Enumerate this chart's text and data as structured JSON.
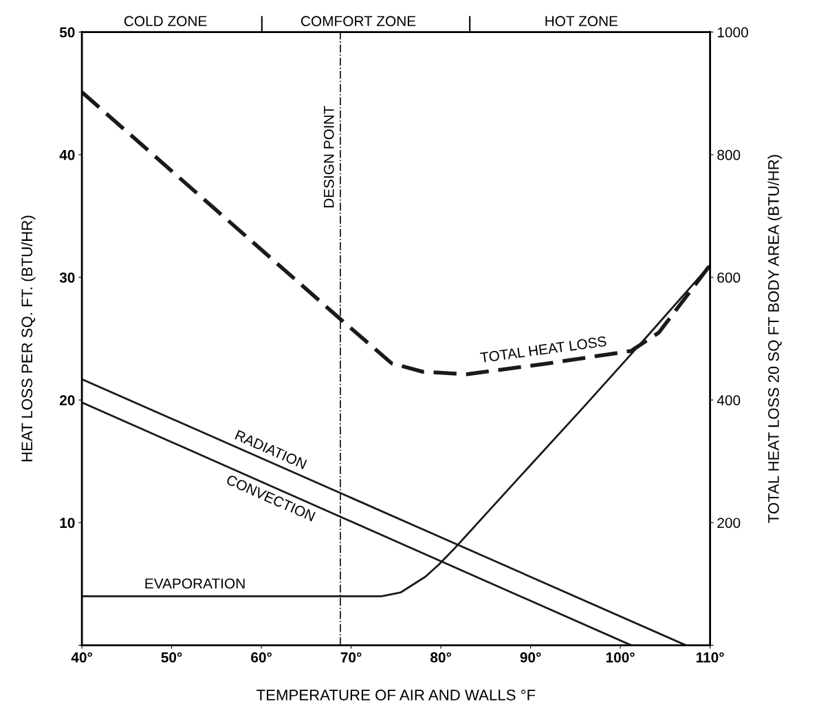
{
  "chart_data": {
    "type": "line",
    "xlabel": "TEMPERATURE OF AIR AND WALLS °F",
    "ylabel": "HEAT LOSS PER SQ. FT. (BTU/HR)",
    "y2label": "TOTAL HEAT LOSS 20 SQ FT BODY AREA (BTU/HR)",
    "xlim": [
      40,
      110
    ],
    "ylim": [
      0,
      50
    ],
    "y2lim": [
      0,
      1000
    ],
    "xticks": [
      {
        "value": 40,
        "label": "40°"
      },
      {
        "value": 50,
        "label": "50°"
      },
      {
        "value": 60,
        "label": "60°"
      },
      {
        "value": 70,
        "label": "70°"
      },
      {
        "value": 80,
        "label": "80°"
      },
      {
        "value": 90,
        "label": "90°"
      },
      {
        "value": 100,
        "label": "100°"
      },
      {
        "value": 110,
        "label": "110°"
      }
    ],
    "yticks": [
      {
        "value": 0,
        "label": null
      },
      10,
      20,
      30,
      40,
      50
    ],
    "y2ticks": [
      {
        "value": 0,
        "label": null
      },
      200,
      400,
      600,
      800,
      1000
    ],
    "grid": false,
    "legend": false,
    "marker": "none",
    "series": [
      {
        "name": "RADIATION",
        "color": "#1a1a1a",
        "line_style": "solid",
        "x": [
          40,
          107.3
        ],
        "values": [
          21.7,
          0
        ]
      },
      {
        "name": "CONVECTION",
        "color": "#1a1a1a",
        "line_style": "solid",
        "x": [
          40,
          101.2
        ],
        "values": [
          19.8,
          0
        ]
      },
      {
        "name": "EVAPORATION",
        "color": "#1a1a1a",
        "line_style": "solid",
        "x": [
          40,
          73.4,
          75.5,
          76.8,
          78.3,
          79.8,
          81.4,
          82.9,
          89,
          96,
          103,
          110
        ],
        "values": [
          4.0,
          4.0,
          4.3,
          4.9,
          5.6,
          6.6,
          7.8,
          9.0,
          13.9,
          19.5,
          25.2,
          31.0
        ]
      },
      {
        "name": "TOTAL HEAT LOSS",
        "color": "#1a1a1a",
        "line_style": "dashed",
        "x": [
          40,
          68.8,
          74.5,
          78,
          82.9,
          92.1,
          101.2,
          104.3,
          110
        ],
        "values": [
          45.1,
          26.6,
          23.0,
          22.3,
          22.1,
          23.0,
          24.0,
          25.5,
          31.0
        ]
      }
    ],
    "ref_lines": [
      {
        "axis": "x",
        "value": 68.8,
        "label": "DESIGN POINT",
        "color": "#1a1a1a",
        "line_style": "dashdot"
      }
    ],
    "annotations": [
      "COLD ZONE",
      "COMFORT ZONE",
      "HOT ZONE"
    ]
  }
}
